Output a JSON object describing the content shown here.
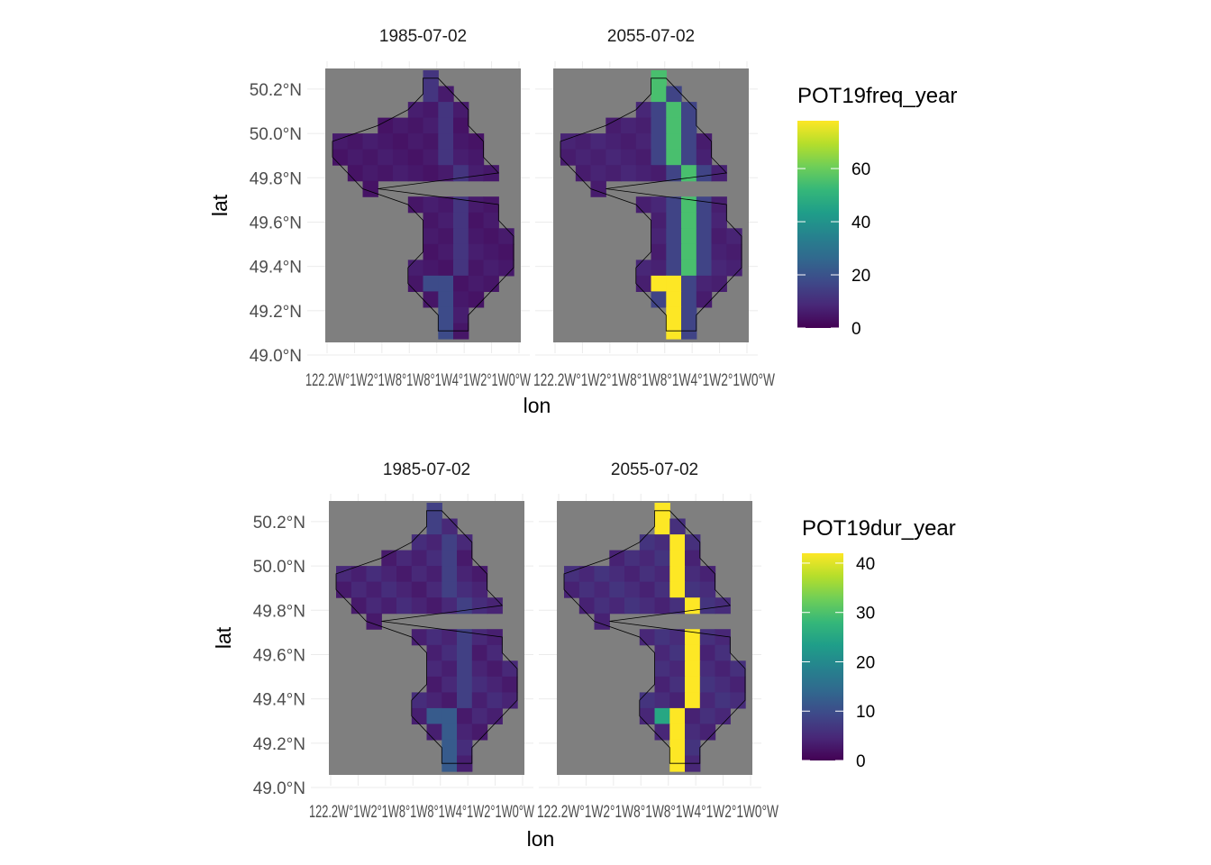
{
  "colors": {
    "panel_bg": "#7f7f7f",
    "grid": "#ebebeb",
    "outline": "#000000",
    "viridis": [
      "#440154",
      "#482878",
      "#3e4989",
      "#31688e",
      "#26828e",
      "#1f9e89",
      "#35b779",
      "#6ece58",
      "#b5de2b",
      "#fde725"
    ]
  },
  "chart_data": [
    {
      "type": "heatmap",
      "facets": [
        "1985-07-02",
        "2055-07-02"
      ],
      "xlabel": "lon",
      "ylabel": "lat",
      "xlim": [
        -122.4,
        -119.9
      ],
      "ylim": [
        49.0,
        50.35
      ],
      "y_ticks": [
        "49.0°N",
        "49.2°N",
        "49.4°N",
        "49.6°N",
        "49.8°N",
        "50.0°N",
        "50.2°N"
      ],
      "y_tick_values": [
        49.0,
        49.2,
        49.4,
        49.6,
        49.8,
        50.0,
        50.2
      ],
      "x_tick_text": "122.2W°1W2°1W8°1W8°1W4°1W2°1W0°W",
      "x_tick_text_right": "122.2W°1W2°1W8°1W8°1W4°1W2°1W0°W",
      "legend": {
        "title": "POT19freq_year",
        "ticks": [
          0,
          20,
          40,
          60
        ],
        "min": 0,
        "max": 78
      },
      "values": {
        "1985-07-02": {
          "background": 4,
          "channel": 12,
          "channel_max": 18,
          "hotspot": 18
        },
        "2055-07-02": {
          "background": 6,
          "channel": 55,
          "channel_max": 78,
          "hotspot": 78
        }
      }
    },
    {
      "type": "heatmap",
      "facets": [
        "1985-07-02",
        "2055-07-02"
      ],
      "xlabel": "lon",
      "ylabel": "lat",
      "xlim": [
        -122.4,
        -119.9
      ],
      "ylim": [
        49.0,
        50.35
      ],
      "y_ticks": [
        "49.0°N",
        "49.2°N",
        "49.4°N",
        "49.6°N",
        "49.8°N",
        "50.0°N",
        "50.2°N"
      ],
      "y_tick_values": [
        49.0,
        49.2,
        49.4,
        49.6,
        49.8,
        50.0,
        50.2
      ],
      "x_tick_text": "122.2W°1W2°1W8°1W8°1W4°1W2°1W0°W",
      "x_tick_text_right": "122.2W°1W2°1W8°1W8°1W4°1W2°1W0°W",
      "legend": {
        "title": "POT19dur_year",
        "ticks": [
          0,
          10,
          20,
          30,
          40
        ],
        "min": 0,
        "max": 42
      },
      "values": {
        "1985-07-02": {
          "background": 3,
          "channel": 8,
          "channel_max": 12,
          "hotspot": 12
        },
        "2055-07-02": {
          "background": 4,
          "channel": 42,
          "channel_max": 42,
          "hotspot": 25
        }
      }
    }
  ]
}
